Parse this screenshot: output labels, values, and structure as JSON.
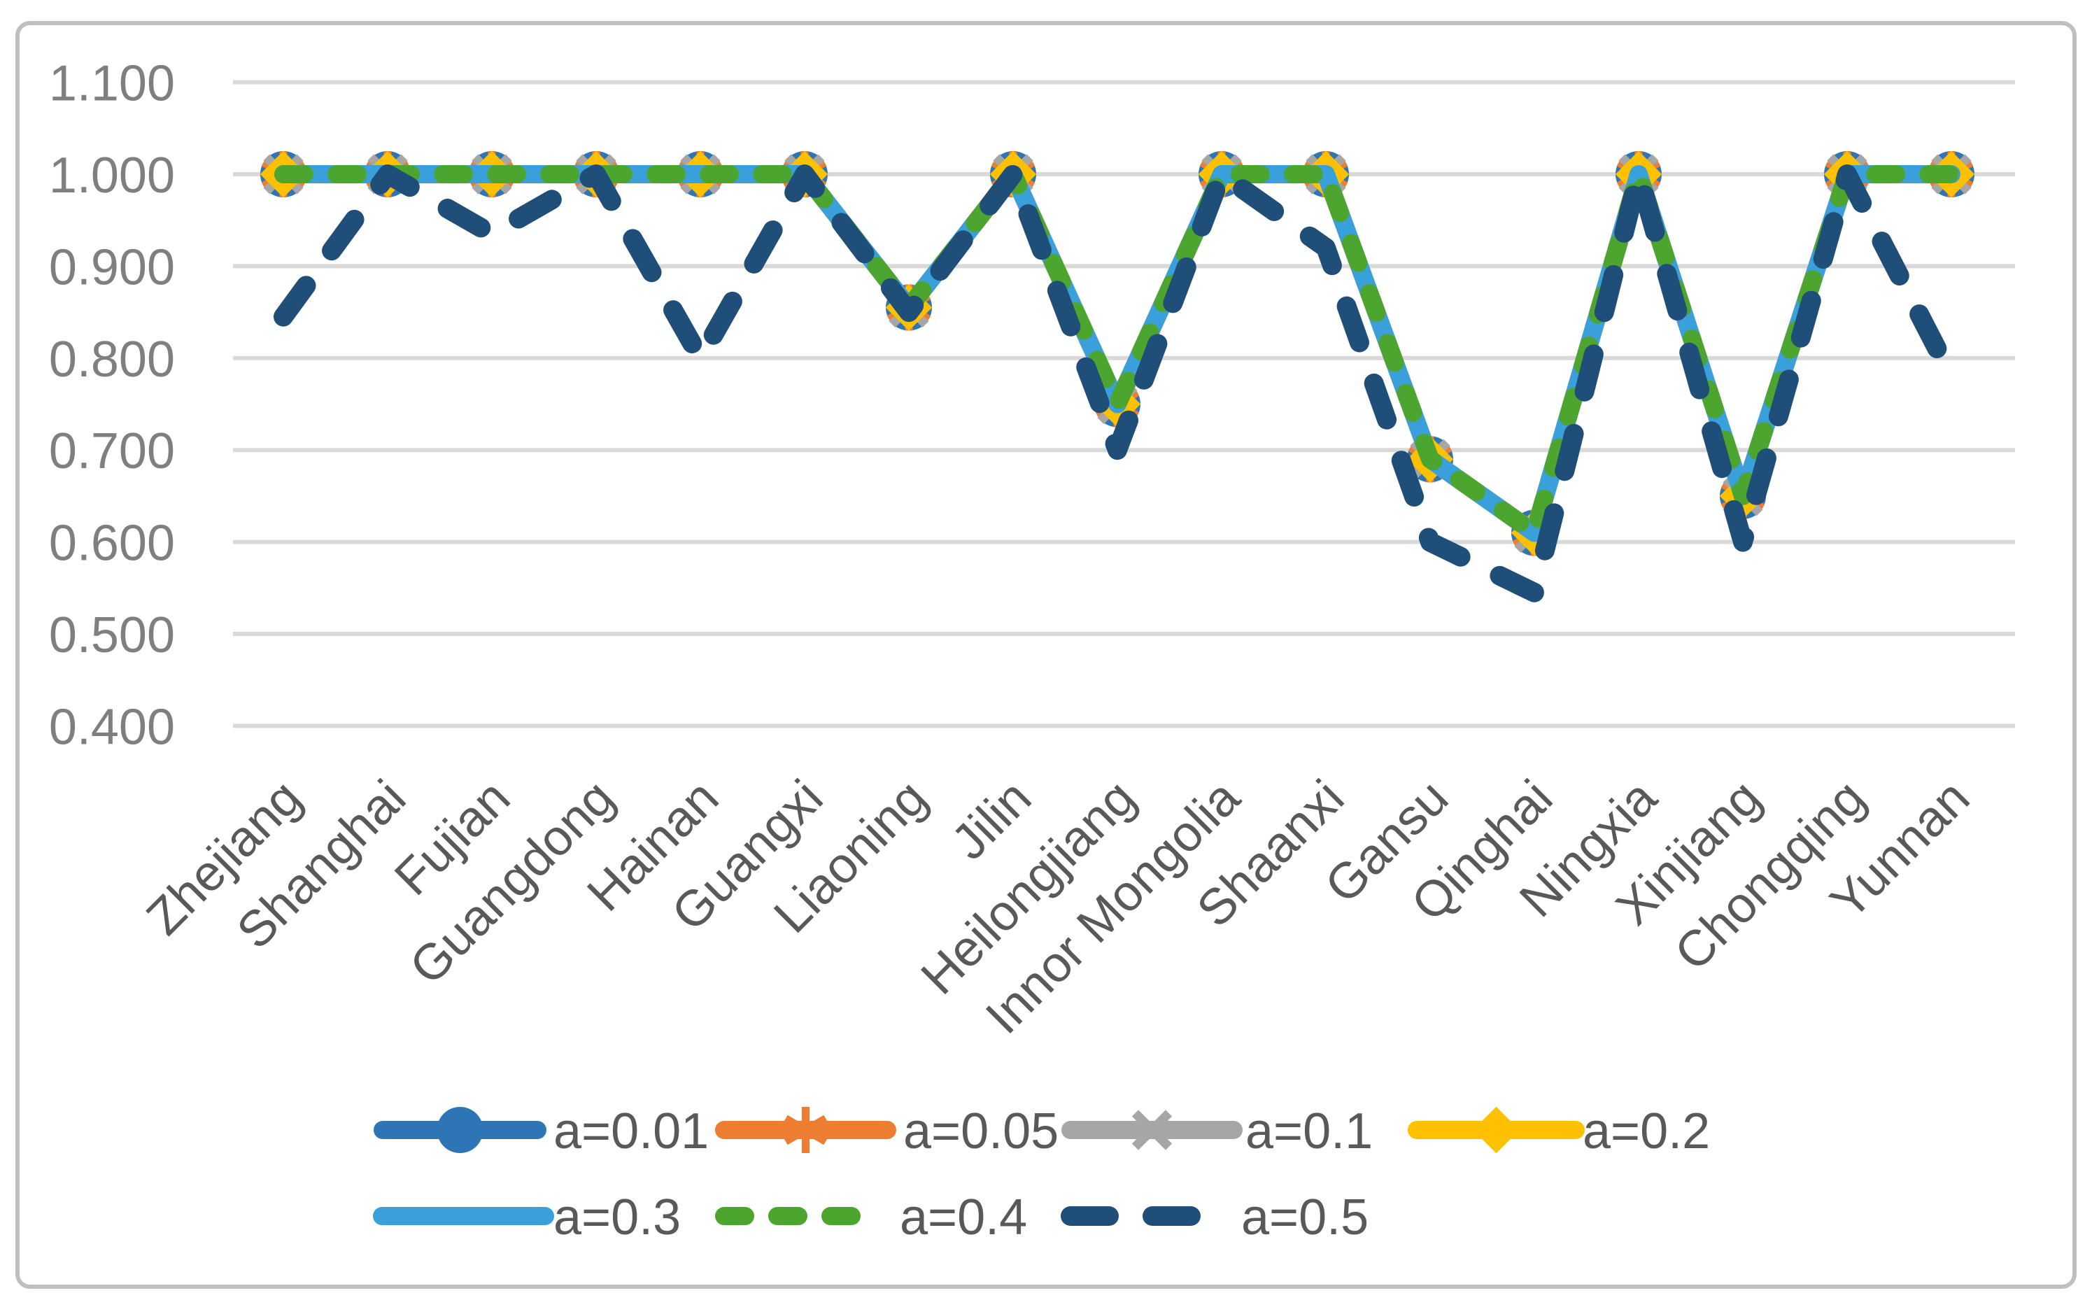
{
  "chart_data": {
    "type": "line",
    "title": "",
    "xlabel": "",
    "ylabel": "",
    "categories": [
      "Zhejiang",
      "Shanghai",
      "Fujian",
      "Guangdong",
      "Hainan",
      "Guangxi",
      "Liaoning",
      "Jilin",
      "Heilongjiang",
      "Innor Mongolia",
      "Shaanxi",
      "Gansu",
      "Qinghai",
      "Ningxia",
      "Xinjiang",
      "Chongqing",
      "Yunnan"
    ],
    "series": [
      {
        "name": "a=0.01",
        "color": "#2E75B6",
        "marker": "circle",
        "line": "solid",
        "values": [
          1.0,
          1.0,
          1.0,
          1.0,
          1.0,
          1.0,
          0.855,
          1.0,
          0.75,
          1.0,
          1.0,
          0.69,
          0.61,
          1.0,
          0.65,
          1.0,
          1.0
        ]
      },
      {
        "name": "a=0.05",
        "color": "#ED7D31",
        "marker": "asterisk",
        "line": "solid",
        "values": [
          1.0,
          1.0,
          1.0,
          1.0,
          1.0,
          1.0,
          0.855,
          1.0,
          0.75,
          1.0,
          1.0,
          0.69,
          0.61,
          1.0,
          0.65,
          1.0,
          1.0
        ]
      },
      {
        "name": "a=0.1",
        "color": "#A6A6A6",
        "marker": "x",
        "line": "solid",
        "values": [
          1.0,
          1.0,
          1.0,
          1.0,
          1.0,
          1.0,
          0.855,
          1.0,
          0.75,
          1.0,
          1.0,
          0.69,
          0.61,
          1.0,
          0.65,
          1.0,
          1.0
        ]
      },
      {
        "name": "a=0.2",
        "color": "#FFC000",
        "marker": "diamond",
        "line": "solid",
        "values": [
          1.0,
          1.0,
          1.0,
          1.0,
          1.0,
          1.0,
          0.855,
          1.0,
          0.75,
          1.0,
          1.0,
          0.69,
          0.61,
          1.0,
          0.65,
          1.0,
          1.0
        ]
      },
      {
        "name": "a=0.3",
        "color": "#3AA0DC",
        "marker": "none",
        "line": "solid",
        "values": [
          1.0,
          1.0,
          1.0,
          1.0,
          1.0,
          1.0,
          0.855,
          1.0,
          0.75,
          1.0,
          1.0,
          0.69,
          0.61,
          1.0,
          0.65,
          1.0,
          1.0
        ]
      },
      {
        "name": "a=0.4",
        "color": "#4CA52F",
        "marker": "none",
        "line": "dash-short",
        "values": [
          1.0,
          1.0,
          1.0,
          1.0,
          1.0,
          1.0,
          0.855,
          1.0,
          0.75,
          1.0,
          1.0,
          0.69,
          0.61,
          1.0,
          0.65,
          1.0,
          1.0
        ]
      },
      {
        "name": "a=0.5",
        "color": "#1F4E79",
        "marker": "none",
        "line": "dash-long",
        "values": [
          0.845,
          1.0,
          0.935,
          1.0,
          0.8,
          1.0,
          0.85,
          1.0,
          0.7,
          1.0,
          0.92,
          0.6,
          0.545,
          1.0,
          0.6,
          1.0,
          0.78
        ]
      }
    ],
    "ylim": [
      0.4,
      1.1
    ],
    "ytick_step": 0.1,
    "ytick_labels": [
      "1.100",
      "1.000",
      "0.900",
      "0.800",
      "0.700",
      "0.600",
      "0.500",
      "0.400"
    ],
    "grid": true,
    "legend_position": "bottom",
    "legend_rows": [
      [
        "a=0.01",
        "a=0.05",
        "a=0.1",
        "a=0.2"
      ],
      [
        "a=0.3",
        "a=0.4",
        "a=0.5"
      ]
    ],
    "colors": {
      "gridline": "#D9D9D9",
      "border": "#BFBFBF",
      "ytick_text": "#7F7F7F",
      "xtick_text": "#595959",
      "legend_text": "#595959",
      "background": "#FFFFFF"
    }
  }
}
